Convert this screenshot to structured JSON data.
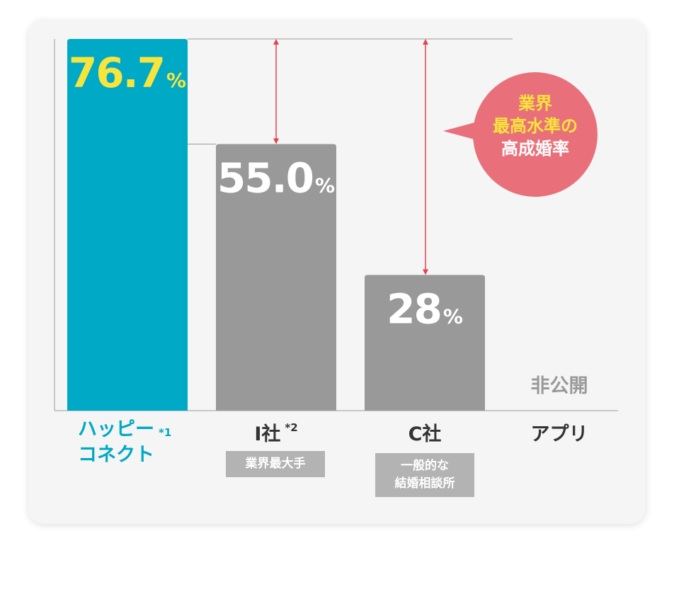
{
  "chart_data": {
    "type": "bar",
    "categories": [
      "ハッピーコネクト",
      "I社",
      "C社",
      "アプリ"
    ],
    "values": [
      76.7,
      55.0,
      28,
      null
    ],
    "value_labels": [
      "76.7",
      "55.0",
      "28",
      ""
    ],
    "value_unit": "%",
    "undisclosed_label": "非公開",
    "ylim": [
      0,
      76.7
    ],
    "highlight_color": "#00a9c5",
    "bar_color": "#999999",
    "value_color_highlight": "#f7e43c",
    "value_color": "#ffffff",
    "arrow_color": "#e6414f"
  },
  "labels": {
    "cat1_line1": "ハッピー",
    "cat1_line2": "コネクト",
    "cat1_note": "*1",
    "cat2": "I社",
    "cat2_note": "*2",
    "cat2_badge": "業界最大手",
    "cat3": "C社",
    "cat3_badge_line1": "一般的な",
    "cat3_badge_line2": "結婚相談所",
    "cat4": "アプリ"
  },
  "bubble": {
    "line1": "業界",
    "line2": "最高水準の",
    "line3": "高成婚率",
    "bg_color": "#e9707a",
    "line1_color": "#f7e43c",
    "line2_color": "#f7e43c",
    "line3_color": "#ffffff"
  }
}
